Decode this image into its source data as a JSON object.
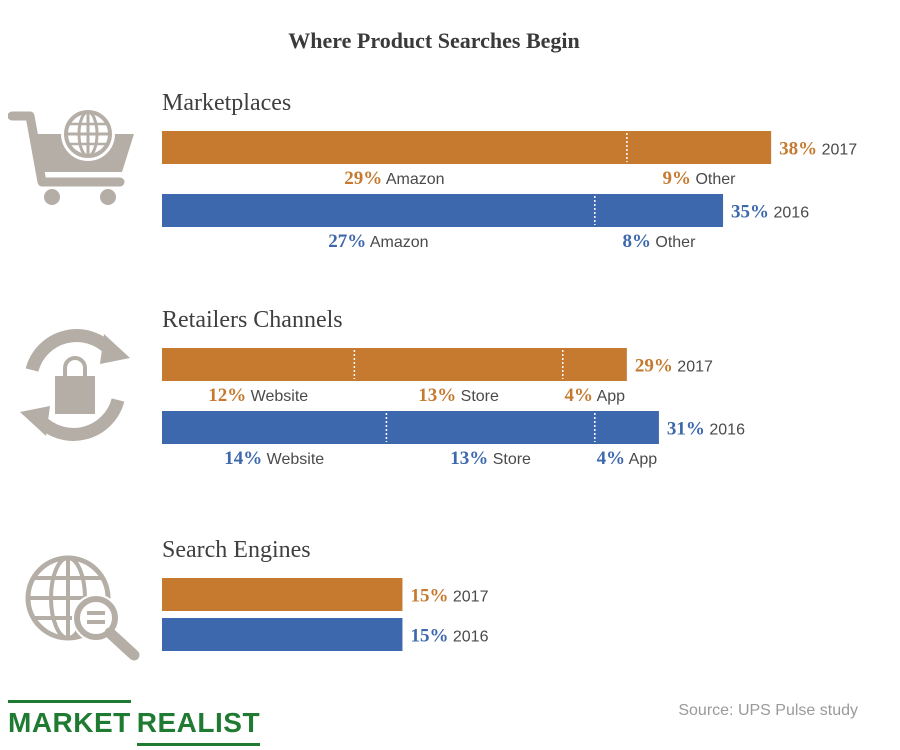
{
  "chart_data": {
    "type": "bar",
    "title": "Where Product Searches Begin",
    "colors": {
      "2017": "#c57a30",
      "2016": "#3d68ad"
    },
    "groups": [
      {
        "name": "Marketplaces",
        "icon": "shopping-cart-globe-icon",
        "bars": [
          {
            "year": "2017",
            "total": 38,
            "total_label": "38%",
            "segments": [
              {
                "label": "Amazon",
                "value": 29,
                "value_label": "29%"
              },
              {
                "label": "Other",
                "value": 9,
                "value_label": "9%"
              }
            ]
          },
          {
            "year": "2016",
            "total": 35,
            "total_label": "35%",
            "segments": [
              {
                "label": "Amazon",
                "value": 27,
                "value_label": "27%"
              },
              {
                "label": "Other",
                "value": 8,
                "value_label": "8%"
              }
            ]
          }
        ]
      },
      {
        "name": "Retailers Channels",
        "icon": "shopping-bag-refresh-icon",
        "bars": [
          {
            "year": "2017",
            "total": 29,
            "total_label": "29%",
            "segments": [
              {
                "label": "Website",
                "value": 12,
                "value_label": "12%"
              },
              {
                "label": "Store",
                "value": 13,
                "value_label": "13%"
              },
              {
                "label": "App",
                "value": 4,
                "value_label": "4%"
              }
            ]
          },
          {
            "year": "2016",
            "total": 31,
            "total_label": "31%",
            "segments": [
              {
                "label": "Website",
                "value": 14,
                "value_label": "14%"
              },
              {
                "label": "Store",
                "value": 13,
                "value_label": "13%"
              },
              {
                "label": "App",
                "value": 4,
                "value_label": "4%"
              }
            ]
          }
        ]
      },
      {
        "name": "Search Engines",
        "icon": "globe-search-icon",
        "bars": [
          {
            "year": "2017",
            "total": 15,
            "total_label": "15%",
            "segments": []
          },
          {
            "year": "2016",
            "total": 15,
            "total_label": "15%",
            "segments": []
          }
        ]
      }
    ]
  },
  "footer": {
    "brand_word1": "MARKET",
    "brand_word2": "REALIST",
    "brand_color": "#1f7a32",
    "source": "Source: UPS Pulse study"
  }
}
